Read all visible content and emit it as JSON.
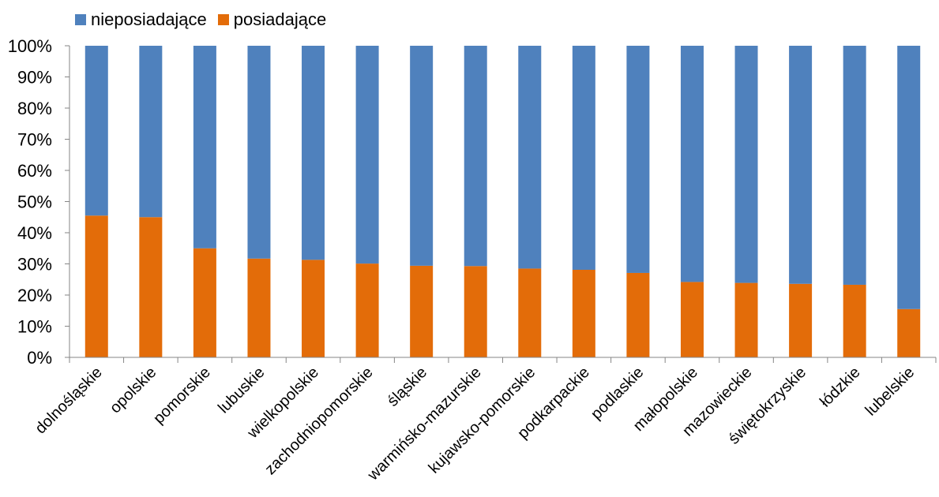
{
  "legend": {
    "items": [
      {
        "label": "nieposiadające",
        "color": "#4F81BD"
      },
      {
        "label": "posiadające",
        "color": "#E36C09"
      }
    ]
  },
  "chart_data": {
    "type": "bar",
    "stacked": true,
    "percent": true,
    "categories": [
      "dolnośląskie",
      "opolskie",
      "pomorskie",
      "lubuskie",
      "wielkopolskie",
      "zachodniopomorskie",
      "śląskie",
      "warmińsko-mazurskie",
      "kujawsko-pomorskie",
      "podkarpackie",
      "podlaskie",
      "małopolskie",
      "mazowieckie",
      "świętokrzyskie",
      "łódzkie",
      "lubelskie"
    ],
    "series": [
      {
        "name": "posiadające",
        "color": "#E36C09",
        "values": [
          45.5,
          45,
          35,
          31.7,
          31.3,
          30.1,
          29.4,
          29.3,
          28.5,
          28.1,
          27.1,
          24.2,
          23.9,
          23.6,
          23.3,
          15.5
        ]
      },
      {
        "name": "nieposiadające",
        "color": "#4F81BD",
        "values": [
          54.5,
          55,
          65,
          68.3,
          68.7,
          69.9,
          70.6,
          70.7,
          71.5,
          71.9,
          72.9,
          75.8,
          76.1,
          76.4,
          76.7,
          84.5
        ]
      }
    ],
    "yticks": [
      "0%",
      "10%",
      "20%",
      "30%",
      "40%",
      "50%",
      "60%",
      "70%",
      "80%",
      "90%",
      "100%"
    ],
    "ylim": [
      0,
      100
    ],
    "grid": false,
    "legend_position": "top-left"
  }
}
